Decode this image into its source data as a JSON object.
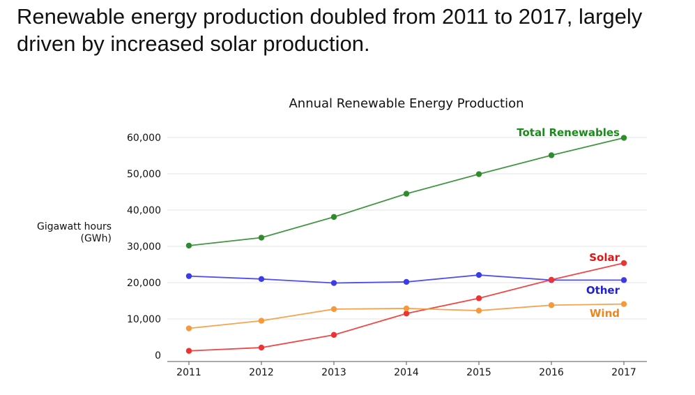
{
  "headline": "Renewable energy production doubled from 2011 to 2017, largely driven by increased solar production.",
  "chart_data": {
    "type": "line",
    "title": "Annual Renewable Energy Production",
    "xlabel": "",
    "ylabel_lines": [
      "Gigawatt hours",
      "(GWh)"
    ],
    "x": [
      2011,
      2012,
      2013,
      2014,
      2015,
      2016,
      2017
    ],
    "ylim": [
      0,
      60000
    ],
    "yticks": [
      0,
      10000,
      20000,
      30000,
      40000,
      50000,
      60000
    ],
    "ytick_labels": [
      "0",
      "10,000",
      "20,000",
      "30,000",
      "40,000",
      "50,000",
      "60,000"
    ],
    "xtick_labels": [
      "2011",
      "2012",
      "2013",
      "2014",
      "2015",
      "2016",
      "2017"
    ],
    "grid": "horizontal",
    "legend": "direct-labels",
    "series": [
      {
        "name": "Total Renewables",
        "color": "#2e8b2e",
        "label_color": "#1a8c1a",
        "values": [
          30200,
          32400,
          38100,
          44500,
          49900,
          55100,
          59900
        ]
      },
      {
        "name": "Other",
        "color": "#3b3bea",
        "label_color": "#1f1fd6",
        "values": [
          21800,
          21000,
          19900,
          20200,
          22100,
          20700,
          20700
        ]
      },
      {
        "name": "Solar",
        "color": "#ee3333",
        "label_color": "#e01414",
        "values": [
          1200,
          2100,
          5600,
          11500,
          15700,
          20800,
          25400
        ]
      },
      {
        "name": "Wind",
        "color": "#f6993c",
        "label_color": "#f08519",
        "values": [
          7400,
          9500,
          12700,
          12900,
          12300,
          13800,
          14100
        ]
      }
    ]
  }
}
